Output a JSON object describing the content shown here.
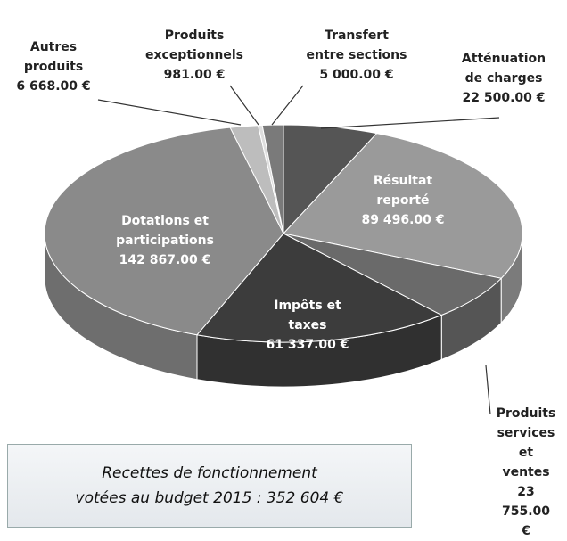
{
  "chart_data": {
    "type": "pie",
    "title": "Recettes de fonctionnement\nvotées au budget 2015 : 352 604 €",
    "categories": [
      "Atténuation\nde charges",
      "Résultat\nreporté",
      "Produits\nservices et\nventes",
      "Impôts et\ntaxes",
      "Dotations et\nparticipations",
      "Autres\nproduits",
      "Produits\nexceptionnels",
      "Transfert\nentre sections"
    ],
    "values": [
      22500,
      89496,
      23755,
      61337,
      142867,
      6668,
      981,
      5000
    ],
    "value_labels": [
      "22 500.00 €",
      "89 496.00 €",
      "23 755.00 €",
      "61 337.00 €",
      "142 867.00 €",
      "6 668.00 €",
      "981.00 €",
      "5 000.00 €"
    ],
    "colors": [
      "#555555",
      "#9a9a9a",
      "#6a6a6a",
      "#3c3c3c",
      "#8a8a8a",
      "#bdbdbd",
      "#dedede",
      "#7a7a7a"
    ]
  }
}
